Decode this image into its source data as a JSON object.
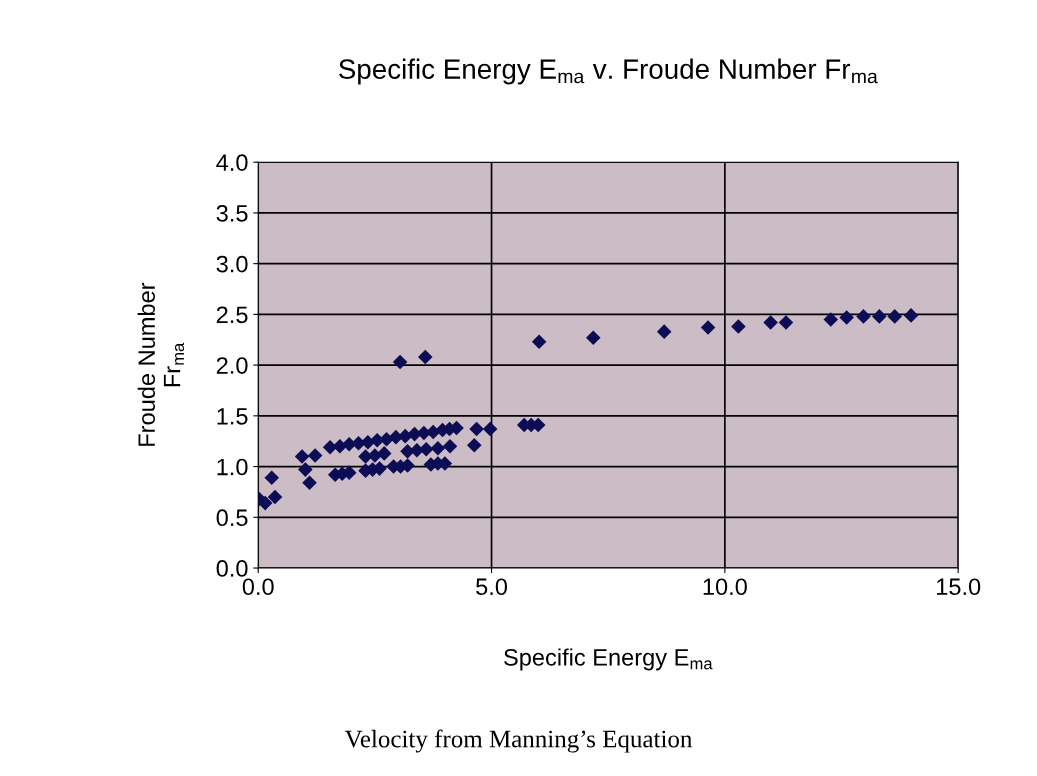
{
  "chart_data": {
    "type": "scatter",
    "title": "Specific Energy E$_{ma}$ v. Froude Number Fr$_{ma}$",
    "xlabel": "Specific Energy E$_{ma}$",
    "ylabel": "Froude Number\nFr$_{ma}$",
    "annotations": [
      "Velocity from Manning’s Equation"
    ],
    "marker": "diamond",
    "grid": true,
    "xlim": [
      0,
      15
    ],
    "ylim": [
      0,
      4
    ],
    "xticks": [
      {
        "value": 0,
        "label": "0.0"
      },
      {
        "value": 5,
        "label": "5.0"
      },
      {
        "value": 10,
        "label": "10.0"
      },
      {
        "value": 15,
        "label": "15.0"
      }
    ],
    "yticks": [
      {
        "value": 0,
        "label": "0.0"
      },
      {
        "value": 0.5,
        "label": "0.5"
      },
      {
        "value": 1,
        "label": "1.0"
      },
      {
        "value": 1.5,
        "label": "1.5"
      },
      {
        "value": 2,
        "label": "2.0"
      },
      {
        "value": 2.5,
        "label": "2.5"
      },
      {
        "value": 3,
        "label": "3.0"
      },
      {
        "value": 3.5,
        "label": "3.5"
      },
      {
        "value": 4,
        "label": "4.0"
      }
    ],
    "series": [
      {
        "color": "#0d0d55",
        "x": [
          0.02,
          0.15,
          0.36,
          0.29,
          0.94,
          1.22,
          1.01,
          1.1,
          1.54,
          1.75,
          1.95,
          2.15,
          2.35,
          2.55,
          2.75,
          2.95,
          3.15,
          3.35,
          3.55,
          3.75,
          3.95,
          4.1,
          4.25,
          2.3,
          2.5,
          2.7,
          3.2,
          3.4,
          3.6,
          3.85,
          4.11,
          1.65,
          1.8,
          1.95,
          2.3,
          2.45,
          2.6,
          2.9,
          3.05,
          3.2,
          3.7,
          3.85,
          4.0,
          4.63,
          4.68,
          4.97,
          5.7,
          5.85,
          6.0,
          3.04,
          3.58,
          6.02,
          7.18,
          8.7,
          9.64,
          10.29,
          10.98,
          11.31,
          12.27,
          12.61,
          12.97,
          13.31,
          13.64,
          13.99
        ],
        "values": [
          0.68,
          0.64,
          0.7,
          0.89,
          1.1,
          1.11,
          0.97,
          0.84,
          1.19,
          1.2,
          1.22,
          1.23,
          1.24,
          1.26,
          1.27,
          1.29,
          1.3,
          1.32,
          1.33,
          1.34,
          1.36,
          1.37,
          1.38,
          1.1,
          1.11,
          1.13,
          1.15,
          1.16,
          1.17,
          1.18,
          1.2,
          0.92,
          0.93,
          0.94,
          0.96,
          0.97,
          0.98,
          1.0,
          1.0,
          1.01,
          1.02,
          1.03,
          1.03,
          1.21,
          1.37,
          1.37,
          1.41,
          1.41,
          1.41,
          2.03,
          2.08,
          2.23,
          2.27,
          2.33,
          2.37,
          2.38,
          2.42,
          2.42,
          2.45,
          2.47,
          2.48,
          2.48,
          2.48,
          2.49
        ]
      }
    ]
  }
}
